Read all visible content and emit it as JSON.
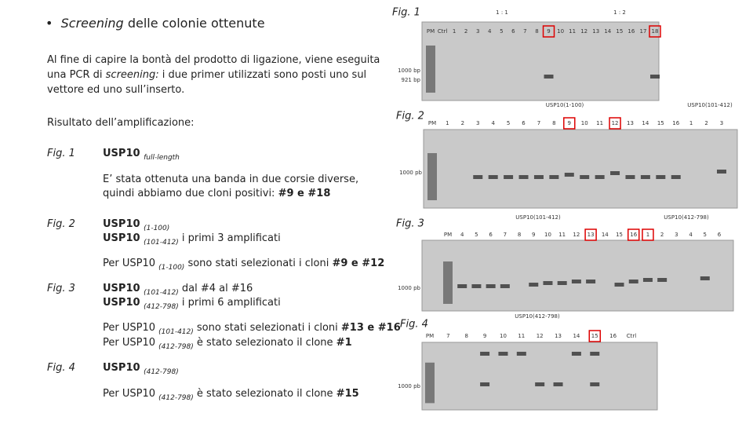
{
  "title": {
    "italic": "Screening",
    "rest": "delle colonie ottenute"
  },
  "intro": [
    [
      {
        "text": "Al fine di capire la bontà del prodotto di ligazione, viene eseguita",
        "style": "n"
      }
    ],
    [
      {
        "text": "una PCR di ",
        "style": "n"
      },
      {
        "text": "screening:",
        "style": "i"
      },
      {
        "text": " i due primer utilizzati sono posti uno sul",
        "style": "n"
      }
    ],
    [
      {
        "text": "vettore ed uno sull’inserto.",
        "style": "n"
      }
    ]
  ],
  "result_heading": "Risultato dell’amplificazione:",
  "notes": [
    {
      "figure": "Fig. 1",
      "heading": [
        [
          {
            "text": "USP10 ",
            "style": "b"
          },
          {
            "text": "full-length",
            "style": "sub"
          }
        ]
      ],
      "text": [
        [
          {
            "text": "E’ stata ottenuta una banda in due corsie diverse,",
            "style": "n"
          }
        ],
        [
          {
            "text": "quindi abbiamo due cloni positivi: ",
            "style": "n"
          },
          {
            "text": "#9 e #18",
            "style": "b"
          }
        ]
      ]
    },
    {
      "figure": "Fig. 2",
      "heading": [
        [
          {
            "text": "USP10 ",
            "style": "b"
          },
          {
            "text": "(1-100)",
            "style": "sub"
          }
        ],
        [
          {
            "text": "USP10 ",
            "style": "b"
          },
          {
            "text": "(101-412)",
            "style": "sub"
          },
          {
            "text": " i primi 3 amplificati",
            "style": "n"
          }
        ]
      ],
      "text": [
        [
          {
            "text": "Per USP10 ",
            "style": "n"
          },
          {
            "text": "(1-100)",
            "style": "sub"
          },
          {
            "text": " sono stati selezionati i cloni ",
            "style": "n"
          },
          {
            "text": "#9 e #12",
            "style": "b"
          }
        ]
      ]
    },
    {
      "figure": "Fig. 3",
      "heading": [
        [
          {
            "text": "USP10 ",
            "style": "b"
          },
          {
            "text": "(101-412)",
            "style": "sub"
          },
          {
            "text": " dal #4 al #16",
            "style": "n"
          }
        ],
        [
          {
            "text": "USP10 ",
            "style": "b"
          },
          {
            "text": "(412-798)",
            "style": "sub"
          },
          {
            "text": " i primi 6 amplificati",
            "style": "n"
          }
        ]
      ],
      "text": [
        [
          {
            "text": "Per USP10 ",
            "style": "n"
          },
          {
            "text": "(101-412)",
            "style": "sub"
          },
          {
            "text": " sono stati selezionati i cloni ",
            "style": "n"
          },
          {
            "text": "#13 e #16",
            "style": "b"
          }
        ],
        [
          {
            "text": "Per USP10 ",
            "style": "n"
          },
          {
            "text": "(412-798)",
            "style": "sub"
          },
          {
            "text": " è stato selezionato il clone ",
            "style": "n"
          },
          {
            "text": "#1",
            "style": "b"
          }
        ]
      ]
    },
    {
      "figure": "Fig. 4",
      "heading": [
        [
          {
            "text": "USP10 ",
            "style": "b"
          },
          {
            "text": "(412-798)",
            "style": "sub"
          }
        ]
      ],
      "text": [
        [
          {
            "text": "Per USP10 ",
            "style": "n"
          },
          {
            "text": "(412-798)",
            "style": "sub"
          },
          {
            "text": " è stato selezionato il clone ",
            "style": "n"
          },
          {
            "text": "#15",
            "style": "b"
          }
        ]
      ]
    }
  ],
  "gels": [
    {
      "label": "Fig. 1",
      "groups": [
        "1 : 1",
        "1 : 2"
      ],
      "markers": [
        "1000 bp",
        "921 bp"
      ],
      "highlight": [
        10,
        19
      ],
      "lanes": [
        "PM",
        "Ctrl",
        "1",
        "2",
        "3",
        "4",
        "5",
        "6",
        "7",
        "8",
        "9",
        "10",
        "11",
        "12",
        "13",
        "14",
        "15",
        "16",
        "17",
        "18"
      ]
    },
    {
      "label": "Fig. 2",
      "groups": [
        "USP10(1-100)",
        "USP10(101-412)"
      ],
      "markers": [
        "1000 pb"
      ],
      "highlight": [
        9,
        12
      ],
      "lanes": [
        "PM",
        "1",
        "2",
        "3",
        "4",
        "5",
        "6",
        "7",
        "8",
        "9",
        "10",
        "11",
        "12",
        "13",
        "14",
        "15",
        "16",
        "1",
        "2",
        "3"
      ]
    },
    {
      "label": "Fig. 3",
      "groups": [
        "USP10(101-412)",
        "USP10(412-798)"
      ],
      "markers": [
        "1000 pb"
      ],
      "highlight": [
        10,
        13,
        14
      ],
      "lanes": [
        "PM",
        "4",
        "5",
        "6",
        "7",
        "8",
        "9",
        "10",
        "11",
        "12",
        "13",
        "14",
        "15",
        "16",
        "1",
        "2",
        "3",
        "4",
        "5",
        "6"
      ]
    },
    {
      "label": "Fig. 4",
      "groups": [
        "USP10(412-798)"
      ],
      "markers": [
        "1000 pb"
      ],
      "highlight": [
        9
      ],
      "lanes": [
        "PM",
        "7",
        "8",
        "9",
        "10",
        "11",
        "12",
        "13",
        "14",
        "15",
        "16",
        "Ctrl"
      ]
    }
  ]
}
